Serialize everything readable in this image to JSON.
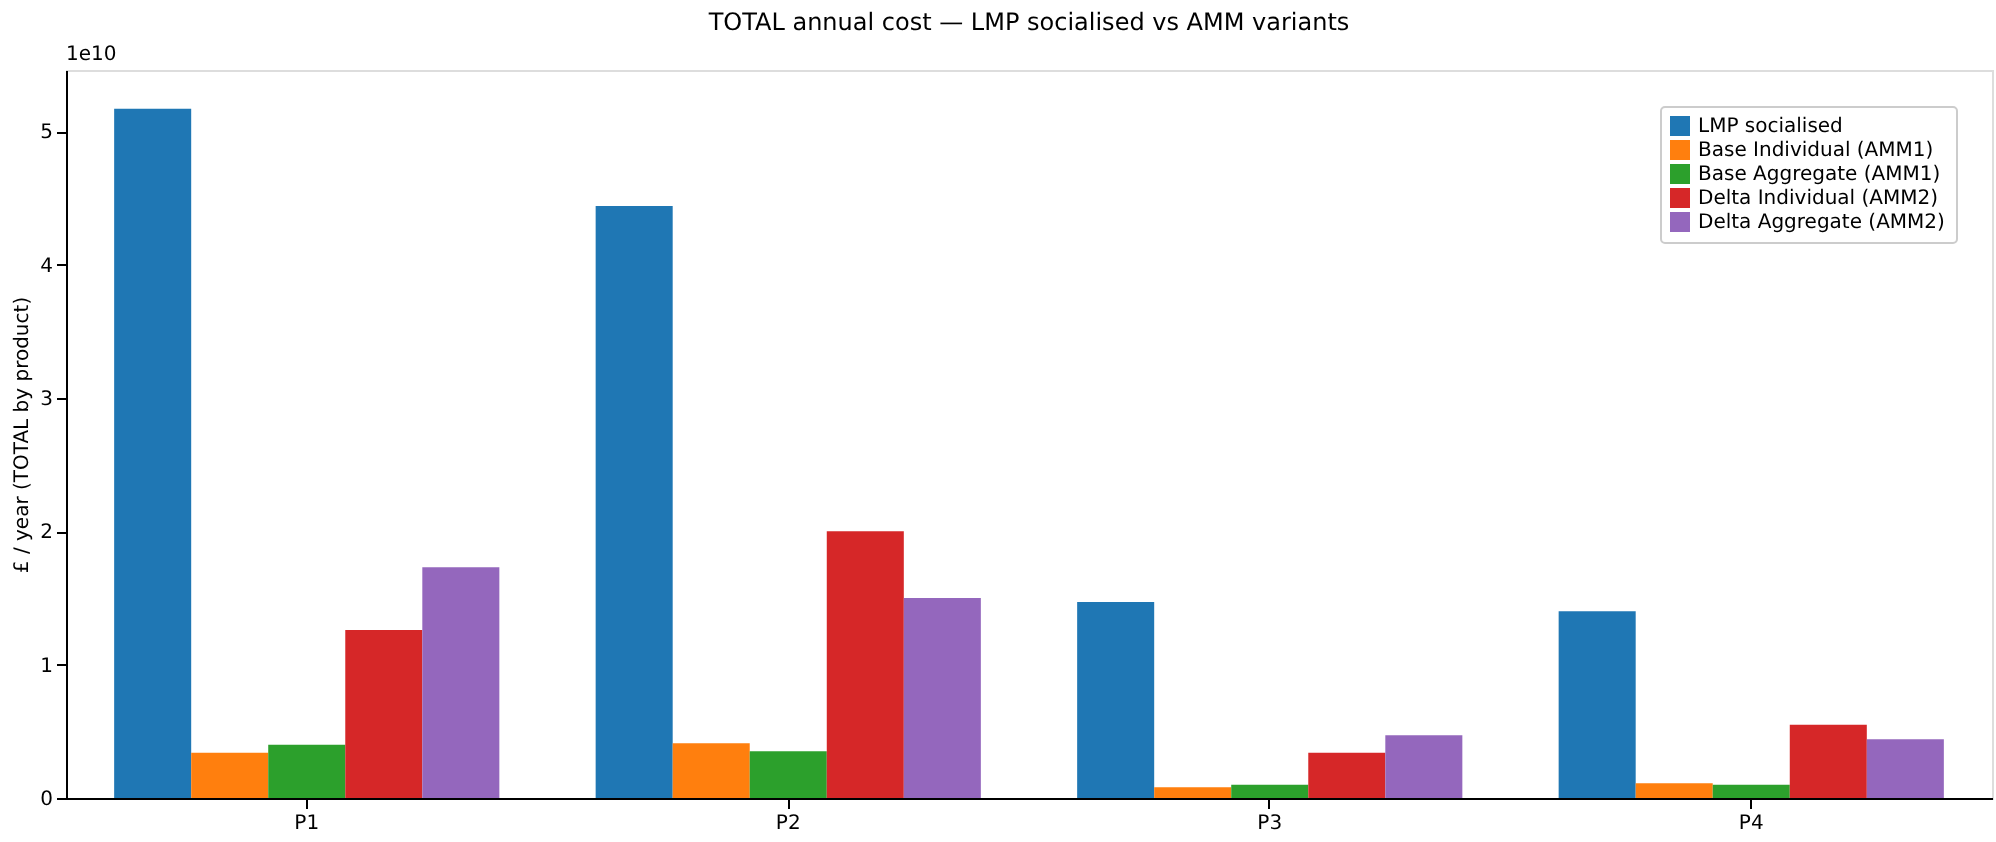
{
  "chart_data": {
    "type": "bar",
    "title": "TOTAL annual cost — LMP socialised vs AMM variants",
    "ylabel": "£ / year (TOTAL by product)",
    "categories": [
      "P1",
      "P2",
      "P3",
      "P4"
    ],
    "series": [
      {
        "name": "LMP socialised",
        "color": "#1f77b4",
        "values": [
          5.17,
          4.44,
          1.47,
          1.4
        ]
      },
      {
        "name": "Base Individual (AMM1)",
        "color": "#ff7f0e",
        "values": [
          0.34,
          0.41,
          0.08,
          0.11
        ]
      },
      {
        "name": "Base Aggregate (AMM1)",
        "color": "#2ca02c",
        "values": [
          0.4,
          0.35,
          0.1,
          0.1
        ]
      },
      {
        "name": "Delta Individual (AMM2)",
        "color": "#d62728",
        "values": [
          1.26,
          2.0,
          0.34,
          0.55
        ]
      },
      {
        "name": "Delta Aggregate (AMM2)",
        "color": "#9467bd",
        "values": [
          1.73,
          1.5,
          0.47,
          0.44
        ]
      }
    ],
    "ylim": [
      0,
      5.46
    ],
    "yticks": [
      0,
      1,
      2,
      3,
      4,
      5
    ],
    "annotations": [
      "1e10"
    ],
    "grid": false,
    "legend": "top right"
  }
}
